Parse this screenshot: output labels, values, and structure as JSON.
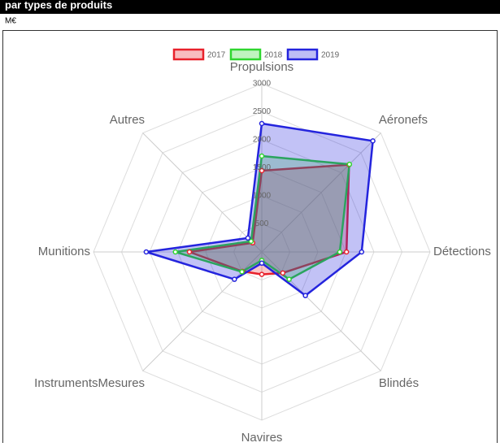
{
  "chart_data": {
    "type": "radar",
    "title": "par types de produits",
    "subtitle": "M€",
    "categories": [
      "Propulsions",
      "Aéronefs",
      "Détections",
      "Blindés",
      "Navires",
      "InstrumentsMesures",
      "Munitions",
      "Autres"
    ],
    "series": [
      {
        "name": "2017",
        "color": "#e8212b",
        "values": [
          1450,
          2200,
          1510,
          530,
          400,
          490,
          1290,
          230
        ]
      },
      {
        "name": "2018",
        "color": "#2fd62f",
        "values": [
          1710,
          2210,
          1390,
          690,
          150,
          500,
          1540,
          270
        ]
      },
      {
        "name": "2019",
        "color": "#2424dd",
        "values": [
          2290,
          2800,
          1780,
          1100,
          200,
          690,
          2060,
          350
        ]
      }
    ],
    "ylim": [
      0,
      3000
    ],
    "yticks": [
      500,
      1000,
      1500,
      2000,
      2500,
      3000
    ],
    "grid": true
  }
}
